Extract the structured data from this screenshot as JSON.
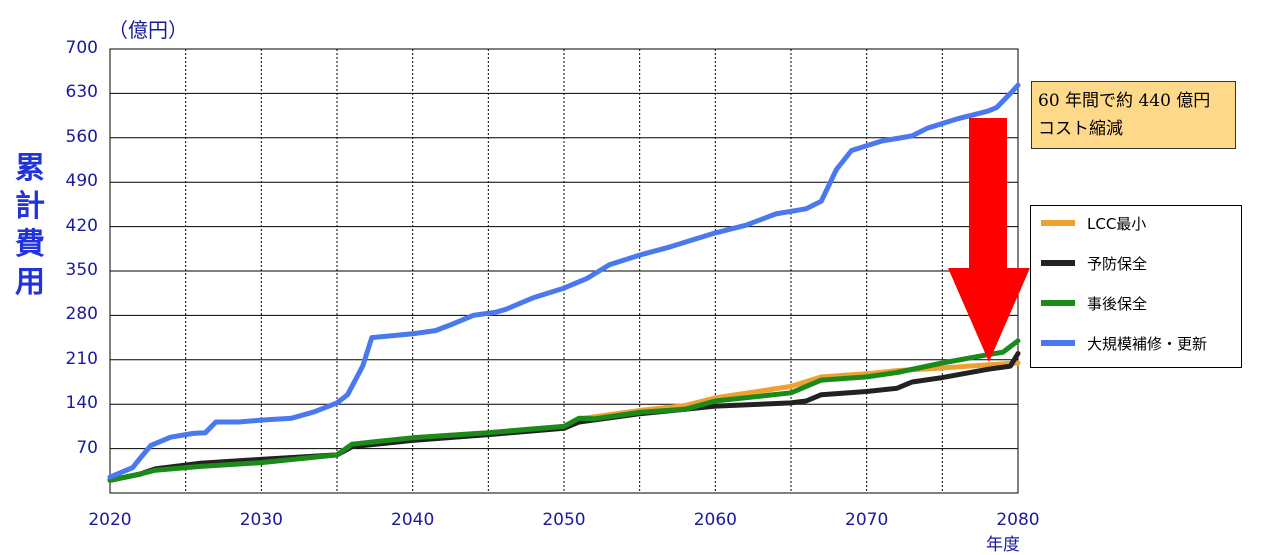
{
  "chart_data": {
    "type": "line",
    "unit_label": "（億円）",
    "ylabel": "累計費用",
    "xlabel": "年度",
    "xlim": [
      2020,
      2080
    ],
    "ylim": [
      0,
      700
    ],
    "yticks": [
      70,
      140,
      210,
      280,
      350,
      420,
      490,
      560,
      630,
      700
    ],
    "xticks": [
      2020,
      2030,
      2040,
      2050,
      2060,
      2070,
      2080
    ],
    "grid": true,
    "legend_position": "right",
    "annotation": {
      "lines": [
        "60 年間で約 440 億円",
        "コスト縮減"
      ],
      "arrow": "down",
      "arrow_color": "#ff0000"
    },
    "series": [
      {
        "name": "LCC最小",
        "color": "#f0a030",
        "x": [
          2020,
          2022,
          2023,
          2025,
          2026,
          2030,
          2035,
          2036,
          2040,
          2045,
          2050,
          2051,
          2055,
          2058,
          2060,
          2065,
          2067,
          2070,
          2072,
          2075,
          2078,
          2080
        ],
        "y": [
          20,
          30,
          38,
          44,
          47,
          53,
          60,
          77,
          87,
          95,
          105,
          117,
          130,
          138,
          150,
          168,
          183,
          188,
          193,
          197,
          202,
          205
        ]
      },
      {
        "name": "予防保全",
        "color": "#222222",
        "x": [
          2020,
          2022,
          2023,
          2025,
          2026,
          2030,
          2035,
          2036,
          2040,
          2045,
          2050,
          2051,
          2055,
          2058,
          2060,
          2065,
          2066,
          2067,
          2070,
          2072,
          2073,
          2075,
          2078,
          2079.5,
          2080
        ],
        "y": [
          20,
          30,
          38,
          44,
          47,
          53,
          60,
          73,
          83,
          92,
          102,
          112,
          125,
          132,
          137,
          142,
          145,
          155,
          160,
          165,
          175,
          182,
          195,
          200,
          220
        ]
      },
      {
        "name": "事後保全",
        "color": "#1a8a1a",
        "x": [
          2020,
          2022,
          2023,
          2025,
          2026,
          2030,
          2035,
          2036,
          2040,
          2045,
          2050,
          2051,
          2052,
          2055,
          2058,
          2060,
          2065,
          2067,
          2070,
          2072,
          2075,
          2078,
          2079,
          2080
        ],
        "y": [
          20,
          30,
          36,
          40,
          42,
          48,
          60,
          77,
          87,
          95,
          105,
          118,
          117,
          127,
          132,
          145,
          158,
          178,
          183,
          190,
          205,
          218,
          222,
          240
        ]
      },
      {
        "name": "大規模補修・更新",
        "color": "#4a78ee",
        "x": [
          2020,
          2021.5,
          2022,
          2022.7,
          2024,
          2025.5,
          2026.3,
          2027,
          2028.5,
          2030,
          2032,
          2033.5,
          2035,
          2035.7,
          2036.7,
          2037.3,
          2040,
          2041.5,
          2042.5,
          2044,
          2045.5,
          2046.2,
          2048,
          2050,
          2051.5,
          2053,
          2055,
          2057,
          2060,
          2062,
          2064,
          2066,
          2067,
          2068,
          2069,
          2071,
          2073,
          2074,
          2076,
          2078,
          2078.6,
          2079.5,
          2080
        ],
        "y": [
          25,
          40,
          55,
          75,
          88,
          94,
          95,
          112,
          112,
          115,
          118,
          128,
          142,
          155,
          200,
          245,
          251,
          256,
          265,
          280,
          285,
          290,
          308,
          323,
          338,
          360,
          375,
          388,
          410,
          422,
          440,
          448,
          460,
          510,
          540,
          555,
          563,
          575,
          590,
          602,
          608,
          630,
          643
        ]
      }
    ]
  }
}
